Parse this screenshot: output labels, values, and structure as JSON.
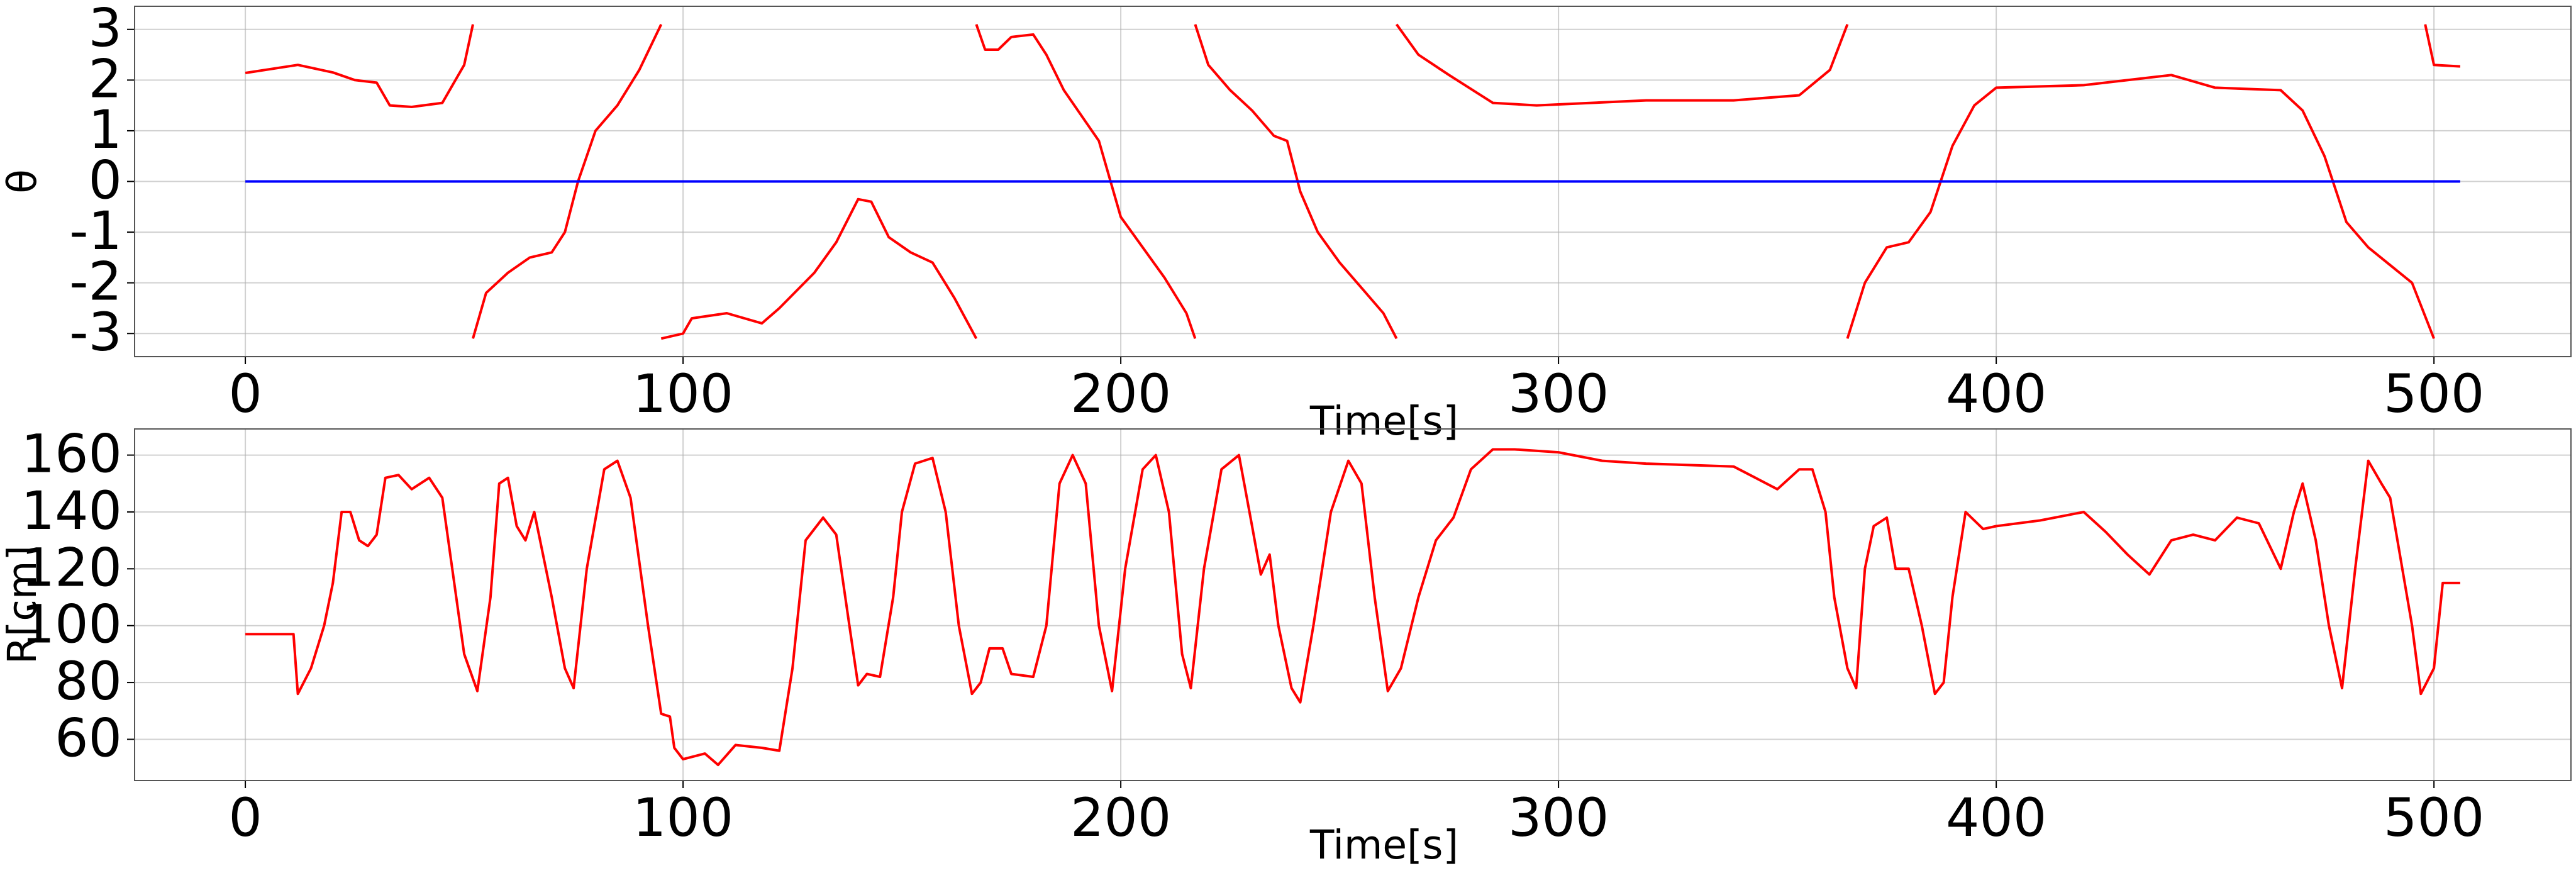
{
  "chart_data": [
    {
      "type": "line",
      "xlabel": "Time[s]",
      "ylabel": "θ",
      "xlim": [
        -25.3,
        531.3
      ],
      "ylim": [
        -3.456,
        3.456
      ],
      "xticks": [
        0,
        100,
        200,
        300,
        400,
        500
      ],
      "yticks": [
        -3,
        -2,
        -1,
        0,
        1,
        2,
        3
      ],
      "grid": true,
      "series": [
        {
          "color": "#ff0000",
          "x": [
            0,
            12,
            20,
            25,
            30,
            33,
            38,
            45,
            50,
            52,
            null,
            52,
            55,
            60,
            65,
            70,
            73,
            76,
            80,
            85,
            90,
            95,
            null,
            95,
            100,
            102,
            110,
            118,
            122,
            130,
            135,
            140,
            143,
            147,
            152,
            157,
            162,
            167,
            null,
            167,
            169,
            172,
            175,
            180,
            183,
            187,
            195,
            200,
            210,
            215,
            217,
            null,
            217,
            220,
            225,
            230,
            235,
            238,
            241,
            245,
            250,
            260,
            263,
            null,
            263,
            268,
            275,
            285,
            295,
            300,
            320,
            340,
            355,
            362,
            366,
            null,
            366,
            370,
            375,
            380,
            385,
            390,
            395,
            400,
            420,
            440,
            450,
            465,
            470,
            475,
            480,
            485,
            495,
            500,
            null,
            498,
            500,
            506
          ],
          "values": [
            2.14,
            2.3,
            2.15,
            2.0,
            1.95,
            1.5,
            1.47,
            1.55,
            2.3,
            3.1,
            null,
            -3.1,
            -2.2,
            -1.8,
            -1.5,
            -1.4,
            -1.0,
            0.0,
            1.0,
            1.5,
            2.2,
            3.1,
            null,
            -3.1,
            -3.0,
            -2.7,
            -2.6,
            -2.8,
            -2.5,
            -1.8,
            -1.2,
            -0.35,
            -0.4,
            -1.1,
            -1.4,
            -1.6,
            -2.3,
            -3.1,
            null,
            3.1,
            2.6,
            2.6,
            2.85,
            2.9,
            2.5,
            1.8,
            0.8,
            -0.7,
            -1.9,
            -2.6,
            -3.1,
            null,
            3.1,
            2.3,
            1.8,
            1.4,
            0.9,
            0.8,
            -0.2,
            -1.0,
            -1.6,
            -2.6,
            -3.1,
            null,
            3.1,
            2.5,
            2.1,
            1.55,
            1.5,
            1.52,
            1.6,
            1.6,
            1.7,
            2.2,
            3.1,
            null,
            -3.1,
            -2.0,
            -1.3,
            -1.2,
            -0.6,
            0.7,
            1.5,
            1.85,
            1.9,
            2.1,
            1.85,
            1.8,
            1.4,
            0.5,
            -0.8,
            -1.3,
            -2.0,
            -3.1,
            null,
            3.1,
            2.3,
            2.27
          ]
        },
        {
          "color": "#0000ff",
          "x": [
            0,
            506
          ],
          "values": [
            0,
            0
          ]
        }
      ]
    },
    {
      "type": "line",
      "xlabel": "Time[s]",
      "ylabel": "R[cm]",
      "xlim": [
        -25.3,
        531.3
      ],
      "ylim": [
        45.5,
        169.2
      ],
      "xticks": [
        0,
        100,
        200,
        300,
        400,
        500
      ],
      "yticks": [
        60,
        80,
        100,
        120,
        140,
        160
      ],
      "grid": true,
      "series": [
        {
          "color": "#ff0000",
          "x": [
            0,
            11,
            12,
            15,
            18,
            20,
            22,
            24,
            26,
            28,
            30,
            32,
            35,
            38,
            42,
            45,
            50,
            53,
            56,
            58,
            60,
            62,
            64,
            66,
            68,
            70,
            73,
            75,
            78,
            82,
            85,
            88,
            92,
            95,
            97,
            98,
            100,
            105,
            108,
            112,
            118,
            122,
            125,
            128,
            132,
            135,
            138,
            140,
            142,
            145,
            148,
            150,
            153,
            157,
            160,
            163,
            166,
            168,
            170,
            173,
            175,
            180,
            183,
            186,
            189,
            192,
            195,
            198,
            201,
            205,
            208,
            211,
            214,
            216,
            219,
            223,
            227,
            230,
            232,
            234,
            236,
            239,
            241,
            244,
            248,
            252,
            255,
            258,
            261,
            264,
            268,
            272,
            276,
            280,
            285,
            290,
            300,
            310,
            320,
            340,
            345,
            350,
            355,
            358,
            361,
            363,
            366,
            368,
            370,
            372,
            375,
            377,
            380,
            383,
            386,
            388,
            390,
            393,
            397,
            400,
            410,
            420,
            425,
            430,
            435,
            440,
            445,
            450,
            455,
            460,
            465,
            468,
            470,
            473,
            476,
            479,
            482,
            485,
            488,
            490,
            495,
            497,
            500,
            502,
            506
          ],
          "values": [
            97,
            97,
            76,
            85,
            100,
            115,
            140,
            140,
            130,
            128,
            132,
            152,
            153,
            148,
            152,
            145,
            90,
            77,
            110,
            150,
            152,
            135,
            130,
            140,
            125,
            110,
            85,
            78,
            120,
            155,
            158,
            145,
            100,
            69,
            68,
            57,
            53,
            55,
            51,
            58,
            57,
            56,
            85,
            130,
            138,
            132,
            100,
            79,
            83,
            82,
            110,
            140,
            157,
            159,
            140,
            100,
            76,
            80,
            92,
            92,
            83,
            82,
            100,
            150,
            160,
            150,
            100,
            77,
            120,
            155,
            160,
            140,
            90,
            78,
            120,
            155,
            160,
            135,
            118,
            125,
            100,
            78,
            73,
            100,
            140,
            158,
            150,
            110,
            77,
            85,
            110,
            130,
            138,
            155,
            162,
            162,
            161,
            158,
            157,
            156,
            152,
            148,
            155,
            155,
            140,
            110,
            85,
            78,
            120,
            135,
            138,
            120,
            120,
            100,
            76,
            80,
            110,
            140,
            134,
            135,
            137,
            140,
            133,
            125,
            118,
            130,
            132,
            130,
            138,
            136,
            120,
            140,
            150,
            130,
            100,
            78,
            120,
            158,
            150,
            145,
            100,
            76,
            85,
            115,
            115
          ]
        }
      ]
    }
  ]
}
